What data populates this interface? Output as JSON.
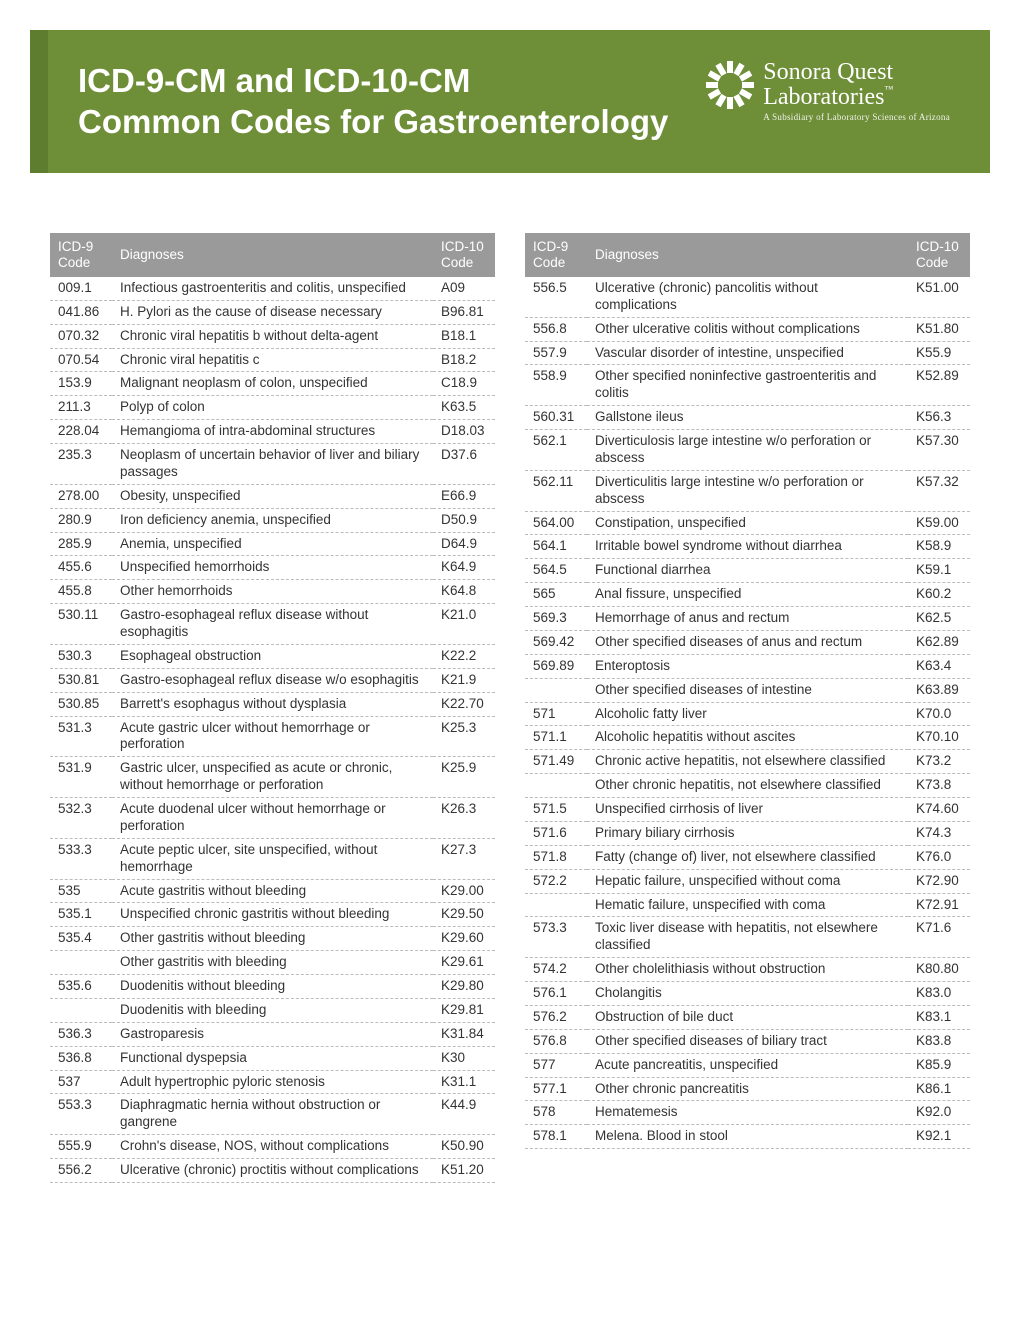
{
  "header": {
    "title_line1": "ICD-9-CM and ICD-10-CM",
    "title_line2": "Common Codes for Gastroenterology"
  },
  "logo": {
    "name1": "Sonora Quest",
    "name2": "Laboratories",
    "tm": "™",
    "sub": "A Subsidiary of Laboratory Sciences of Arizona"
  },
  "columns": {
    "icd9": "ICD-9 Code",
    "diag": "Diagnoses",
    "icd10": "ICD-10 Code"
  },
  "left": [
    {
      "a": "009.1",
      "d": "Infectious gastroenteritis and colitis, unspecified",
      "b": "A09"
    },
    {
      "a": "041.86",
      "d": "H. Pylori as the cause of disease necessary",
      "b": "B96.81"
    },
    {
      "a": "070.32",
      "d": "Chronic viral hepatitis b without delta-agent",
      "b": "B18.1"
    },
    {
      "a": "070.54",
      "d": "Chronic viral hepatitis c",
      "b": "B18.2"
    },
    {
      "a": "153.9",
      "d": "Malignant neoplasm of colon, unspecified",
      "b": "C18.9"
    },
    {
      "a": "211.3",
      "d": "Polyp of colon",
      "b": "K63.5"
    },
    {
      "a": "228.04",
      "d": "Hemangioma of intra-abdominal structures",
      "b": "D18.03"
    },
    {
      "a": "235.3",
      "d": "Neoplasm of uncertain behavior of liver and biliary passages",
      "b": "D37.6"
    },
    {
      "a": "278.00",
      "d": "Obesity, unspecified",
      "b": "E66.9"
    },
    {
      "a": "280.9",
      "d": "Iron deficiency anemia, unspecified",
      "b": "D50.9"
    },
    {
      "a": "285.9",
      "d": "Anemia, unspecified",
      "b": "D64.9"
    },
    {
      "a": "455.6",
      "d": "Unspecified hemorrhoids",
      "b": "K64.9"
    },
    {
      "a": "455.8",
      "d": "Other hemorrhoids",
      "b": "K64.8"
    },
    {
      "a": "530.11",
      "d": "Gastro-esophageal reflux disease without esophagitis",
      "b": "K21.0"
    },
    {
      "a": "530.3",
      "d": "Esophageal obstruction",
      "b": "K22.2"
    },
    {
      "a": "530.81",
      "d": "Gastro-esophageal reflux disease w/o esophagitis",
      "b": "K21.9"
    },
    {
      "a": "530.85",
      "d": "Barrett's esophagus without dysplasia",
      "b": "K22.70"
    },
    {
      "a": "531.3",
      "d": "Acute gastric ulcer without hemorrhage or perforation",
      "b": "K25.3"
    },
    {
      "a": "531.9",
      "d": "Gastric ulcer, unspecified as acute or chronic, without hemorrhage or perforation",
      "b": "K25.9"
    },
    {
      "a": "532.3",
      "d": "Acute duodenal ulcer without hemorrhage or perforation",
      "b": "K26.3"
    },
    {
      "a": "533.3",
      "d": "Acute peptic ulcer, site unspecified, without hemorrhage",
      "b": "K27.3"
    },
    {
      "a": "535",
      "d": "Acute gastritis without bleeding",
      "b": "K29.00"
    },
    {
      "a": "535.1",
      "d": "Unspecified chronic gastritis without bleeding",
      "b": "K29.50"
    },
    {
      "a": "535.4",
      "d": "Other gastritis without bleeding",
      "b": "K29.60"
    },
    {
      "a": "",
      "d": "Other gastritis with bleeding",
      "b": "K29.61"
    },
    {
      "a": "535.6",
      "d": "Duodenitis without bleeding",
      "b": "K29.80"
    },
    {
      "a": "",
      "d": "Duodenitis with bleeding",
      "b": "K29.81"
    },
    {
      "a": "536.3",
      "d": "Gastroparesis",
      "b": "K31.84"
    },
    {
      "a": "536.8",
      "d": "Functional dyspepsia",
      "b": "K30"
    },
    {
      "a": "537",
      "d": "Adult hypertrophic pyloric stenosis",
      "b": "K31.1"
    },
    {
      "a": "553.3",
      "d": "Diaphragmatic hernia without obstruction or gangrene",
      "b": "K44.9"
    },
    {
      "a": "555.9",
      "d": "Crohn's disease, NOS, without complications",
      "b": "K50.90"
    },
    {
      "a": "556.2",
      "d": "Ulcerative (chronic) proctitis without complications",
      "b": "K51.20"
    }
  ],
  "right": [
    {
      "a": "556.5",
      "d": "Ulcerative (chronic) pancolitis without complications",
      "b": "K51.00"
    },
    {
      "a": "556.8",
      "d": "Other ulcerative colitis without complications",
      "b": "K51.80"
    },
    {
      "a": "557.9",
      "d": "Vascular disorder of intestine, unspecified",
      "b": "K55.9"
    },
    {
      "a": "558.9",
      "d": "Other specified noninfective gastroenteritis and colitis",
      "b": "K52.89"
    },
    {
      "a": "560.31",
      "d": "Gallstone ileus",
      "b": "K56.3"
    },
    {
      "a": "562.1",
      "d": "Diverticulosis large intestine w/o perforation or abscess",
      "b": "K57.30"
    },
    {
      "a": "562.11",
      "d": "Diverticulitis large intestine w/o perforation or abscess",
      "b": "K57.32"
    },
    {
      "a": "564.00",
      "d": "Constipation, unspecified",
      "b": "K59.00"
    },
    {
      "a": "564.1",
      "d": "Irritable bowel syndrome without diarrhea",
      "b": "K58.9"
    },
    {
      "a": "564.5",
      "d": "Functional diarrhea",
      "b": "K59.1"
    },
    {
      "a": "565",
      "d": "Anal fissure, unspecified",
      "b": "K60.2"
    },
    {
      "a": "569.3",
      "d": "Hemorrhage of anus and rectum",
      "b": "K62.5"
    },
    {
      "a": "569.42",
      "d": "Other specified diseases of anus and rectum",
      "b": "K62.89"
    },
    {
      "a": "569.89",
      "d": "Enteroptosis",
      "b": "K63.4"
    },
    {
      "a": "",
      "d": "Other specified diseases of intestine",
      "b": "K63.89"
    },
    {
      "a": "571",
      "d": "Alcoholic fatty liver",
      "b": "K70.0"
    },
    {
      "a": "571.1",
      "d": "Alcoholic hepatitis without ascites",
      "b": "K70.10"
    },
    {
      "a": "571.49",
      "d": "Chronic active hepatitis, not elsewhere classified",
      "b": "K73.2"
    },
    {
      "a": "",
      "d": "Other chronic hepatitis, not elsewhere classified",
      "b": "K73.8"
    },
    {
      "a": "571.5",
      "d": "Unspecified cirrhosis of liver",
      "b": "K74.60"
    },
    {
      "a": "571.6",
      "d": "Primary biliary cirrhosis",
      "b": "K74.3"
    },
    {
      "a": "571.8",
      "d": "Fatty (change of) liver, not elsewhere classified",
      "b": "K76.0"
    },
    {
      "a": "572.2",
      "d": "Hepatic failure, unspecified without coma",
      "b": "K72.90"
    },
    {
      "a": "",
      "d": "Hematic failure, unspecified with coma",
      "b": "K72.91"
    },
    {
      "a": "573.3",
      "d": "Toxic liver disease with hepatitis, not elsewhere classified",
      "b": "K71.6"
    },
    {
      "a": "574.2",
      "d": "Other cholelithiasis without obstruction",
      "b": "K80.80"
    },
    {
      "a": "576.1",
      "d": "Cholangitis",
      "b": "K83.0"
    },
    {
      "a": "576.2",
      "d": "Obstruction of bile duct",
      "b": "K83.1"
    },
    {
      "a": "576.8",
      "d": "Other specified diseases of biliary tract",
      "b": "K83.8"
    },
    {
      "a": "577",
      "d": "Acute pancreatitis, unspecified",
      "b": "K85.9"
    },
    {
      "a": "577.1",
      "d": "Other chronic pancreatitis",
      "b": "K86.1"
    },
    {
      "a": "578",
      "d": "Hematemesis",
      "b": "K92.0"
    },
    {
      "a": "578.1",
      "d": "Melena. Blood in stool",
      "b": "K92.1"
    }
  ]
}
